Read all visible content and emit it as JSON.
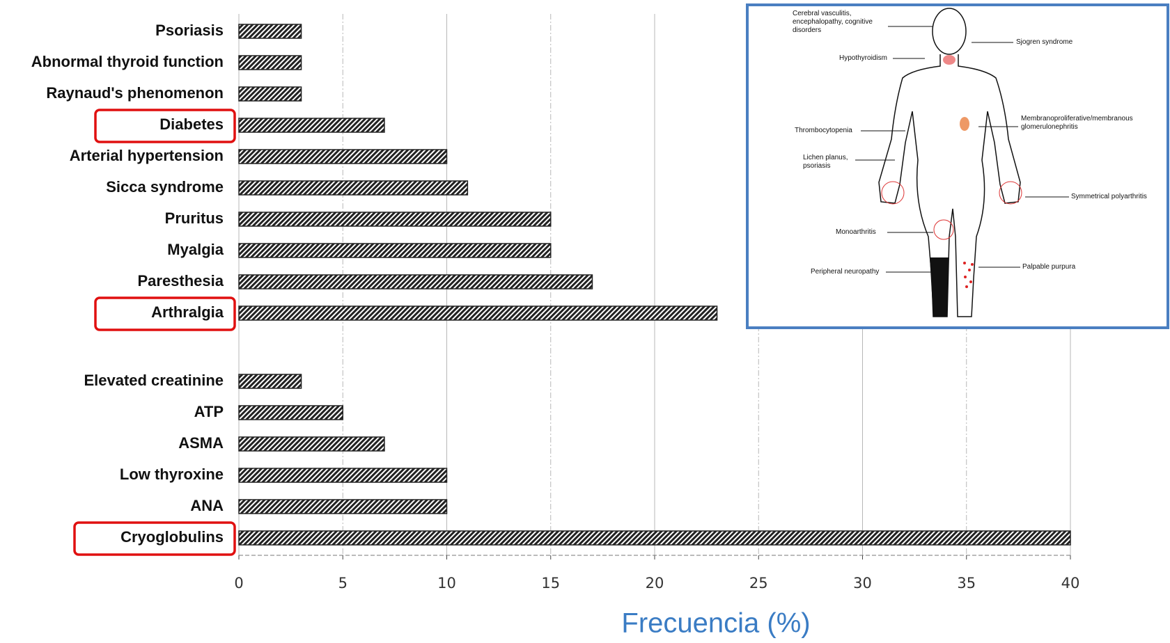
{
  "chart_data": {
    "type": "bar",
    "orientation": "horizontal",
    "x_label": "Frecuencia (%)",
    "categories": [
      "Psoriasis",
      "Abnormal thyroid function",
      "Raynaud's phenomenon",
      "Diabetes",
      "Arterial hypertension",
      "Sicca syndrome",
      "Pruritus",
      "Myalgia",
      "Paresthesia",
      "Arthralgia",
      "Elevated creatinine",
      "ATP",
      "ASMA",
      "Low thyroxine",
      "ANA",
      "Cryoglobulins"
    ],
    "values": [
      3,
      3,
      3,
      7,
      10,
      11,
      15,
      15,
      17,
      23,
      3,
      5,
      7,
      10,
      10,
      40
    ],
    "color": "#222222",
    "xlim": [
      0,
      40
    ],
    "xticks": [
      0,
      5,
      10,
      15,
      20,
      25,
      30,
      35,
      40
    ],
    "grid": true,
    "inset_labels": [
      "Cerebral vasculitis, encephalopathy, cognitive disorders",
      "Sjogren syndrome",
      "Hypothyroidism",
      "Thrombocytopenia",
      "Membranoproliferative/membranous glomerulonephritis",
      "Lichen planus, psoriasis",
      "Symmetrical polyarthritis",
      "Monoarthritis",
      "Peripheral neuropathy",
      "Palpable purpura"
    ]
  }
}
